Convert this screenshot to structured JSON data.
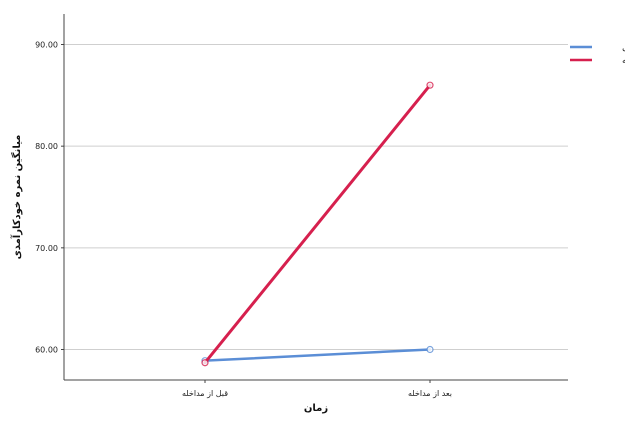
{
  "chart_data": {
    "type": "line",
    "categories": [
      "قبل از مداخله",
      "بعد از مداخله"
    ],
    "series": [
      {
        "name": "کنترل",
        "values": [
          58.9,
          60.0
        ],
        "color": "#5b8ed6"
      },
      {
        "name": "مداخله",
        "values": [
          58.7,
          86.0
        ],
        "color": "#d6204e"
      }
    ],
    "yticks": [
      "60.00",
      "70.00",
      "80.00",
      "90.00"
    ],
    "ylim": [
      57,
      93
    ],
    "xlabel": "زمان",
    "ylabel": "میانگین نمره خودکارآمدی",
    "legend_position": "top-right",
    "grid": true
  }
}
